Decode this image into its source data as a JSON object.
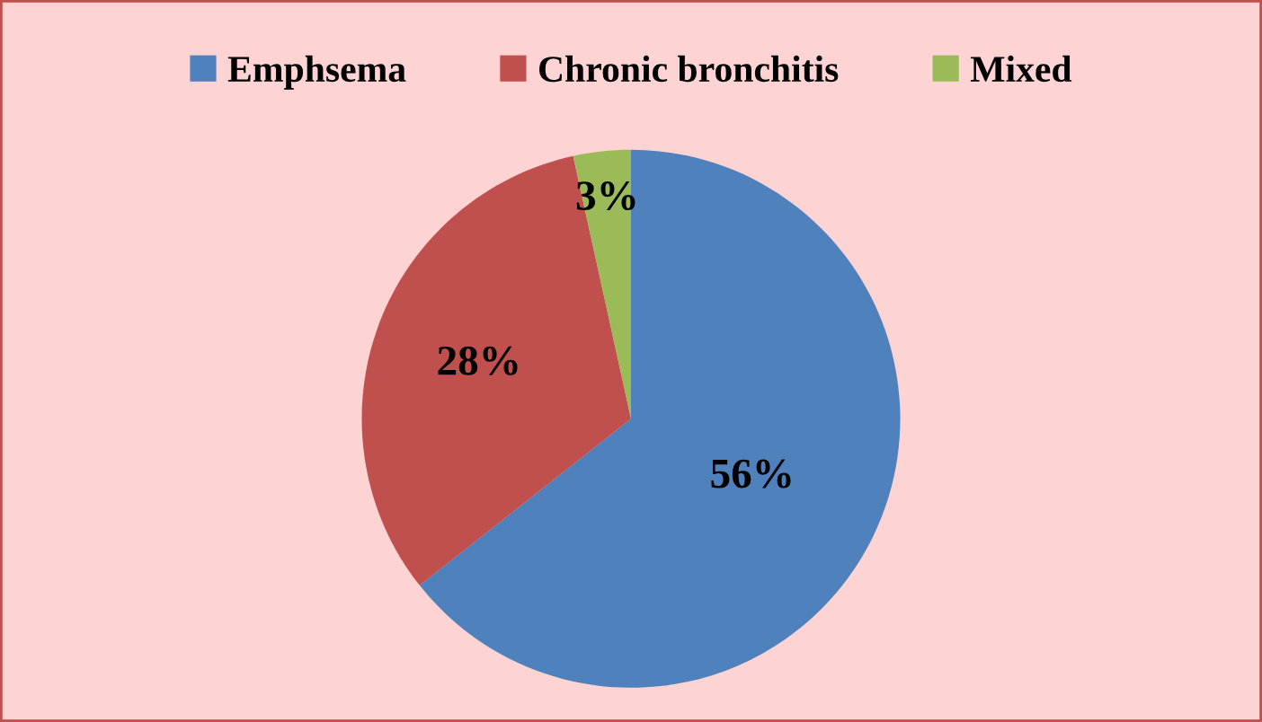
{
  "chart_data": {
    "type": "pie",
    "categories": [
      "Emphsema",
      "Chronic bronchitis",
      "Mixed"
    ],
    "values": [
      56,
      28,
      3
    ],
    "colors": [
      "#4f81bd",
      "#c0504d",
      "#9bbb59"
    ],
    "value_labels": [
      "56%",
      "28%",
      "3%"
    ],
    "legend": "top"
  }
}
